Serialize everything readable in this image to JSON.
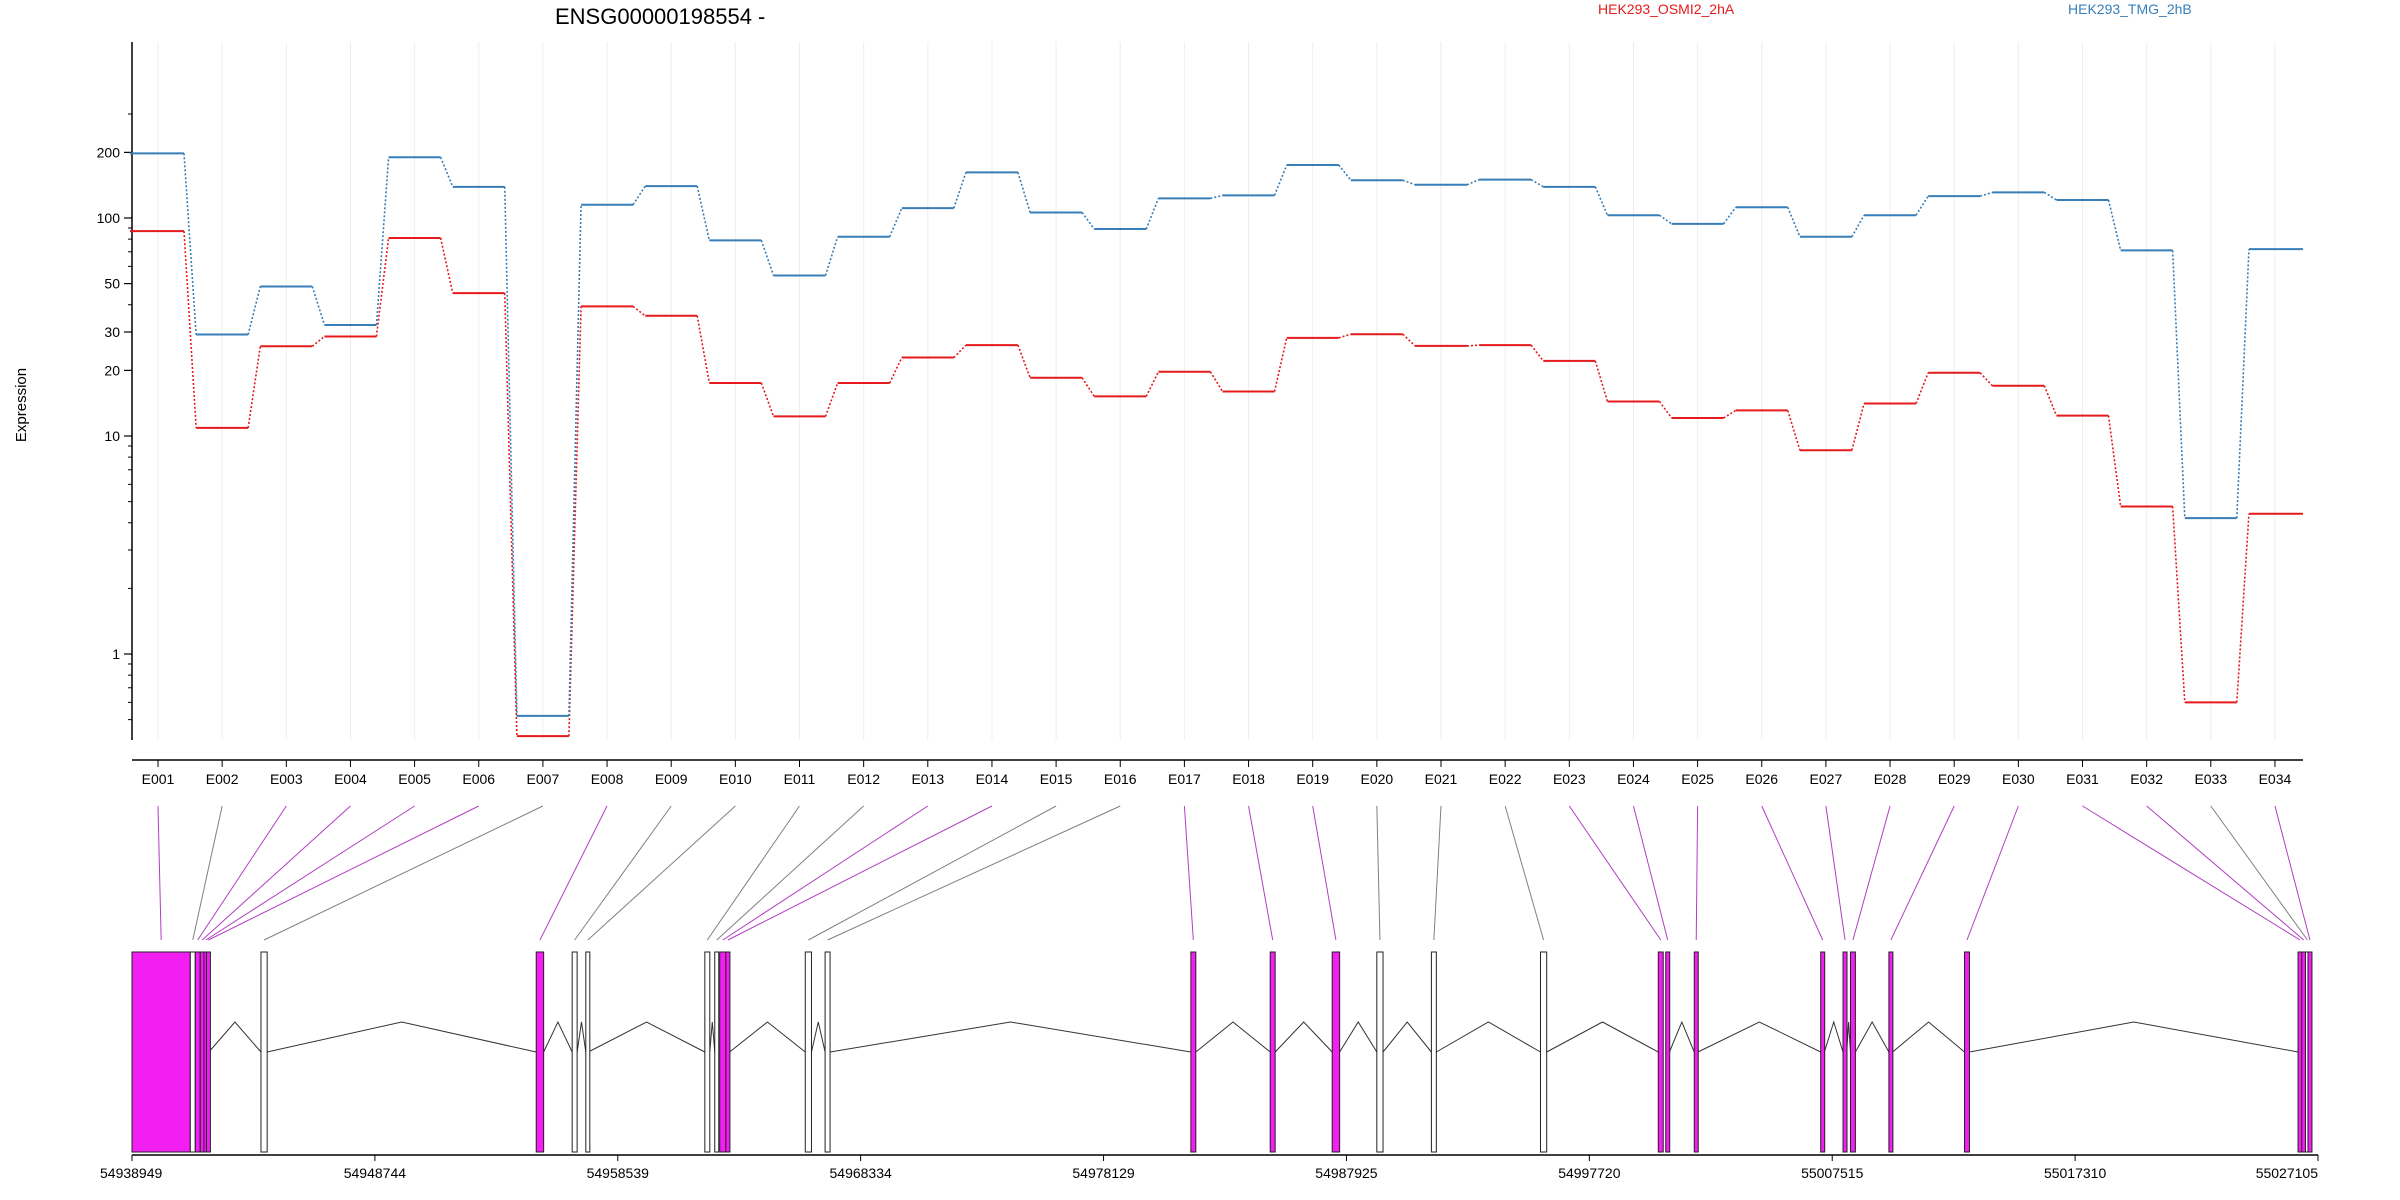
{
  "chart_data": {
    "type": "line",
    "title": "ENSG00000198554 -",
    "ylabel": "Expression",
    "yscale": "log",
    "ylim": [
      0.35,
      350
    ],
    "yticks": [
      1,
      10,
      20,
      30,
      50,
      100,
      200
    ],
    "categories": [
      "E001",
      "E002",
      "E003",
      "E004",
      "E005",
      "E006",
      "E007",
      "E008",
      "E009",
      "E010",
      "E011",
      "E012",
      "E013",
      "E014",
      "E015",
      "E016",
      "E017",
      "E018",
      "E019",
      "E020",
      "E021",
      "E022",
      "E023",
      "E024",
      "E025",
      "E026",
      "E027",
      "E028",
      "E029",
      "E030",
      "E031",
      "E032",
      "E033",
      "E034"
    ],
    "series": [
      {
        "name": "HEK293_OSMI2_2hA",
        "color": "#e41a1c",
        "values": [
          87,
          10.9,
          25.8,
          28.6,
          81,
          45.2,
          0.42,
          39.3,
          35.6,
          17.5,
          12.3,
          17.5,
          22.9,
          26.1,
          18.5,
          15.2,
          19.7,
          16,
          28.2,
          29.3,
          25.9,
          26.1,
          22.1,
          14.4,
          12.1,
          13.1,
          8.6,
          14.1,
          19.5,
          17,
          12.4,
          4.75,
          0.6,
          4.4
        ]
      },
      {
        "name": "HEK293_TMG_2hB",
        "color": "#377eb8",
        "values": [
          198,
          29.2,
          48.5,
          32.3,
          190,
          139,
          0.52,
          115,
          140,
          79,
          54.5,
          82,
          111,
          162,
          106,
          89,
          123,
          127,
          175,
          149,
          142,
          150,
          139,
          103,
          94,
          112,
          82,
          103,
          126,
          131,
          121,
          71,
          4.2,
          72
        ]
      }
    ],
    "genomic_axis": {
      "tick_labels": [
        "54938949",
        "54948744",
        "54958539",
        "54968334",
        "54978129",
        "54987925",
        "54997720",
        "55007515",
        "55017310",
        "55027105"
      ],
      "exons": [
        {
          "id": "E001",
          "start": 54938949,
          "end": 54941300,
          "highlight": true
        },
        {
          "id": "E002",
          "start": 54941300,
          "end": 54941500,
          "highlight": false
        },
        {
          "id": "E003",
          "start": 54941500,
          "end": 54941700,
          "highlight": true
        },
        {
          "id": "E004",
          "start": 54941700,
          "end": 54941850,
          "highlight": true
        },
        {
          "id": "E005",
          "start": 54941850,
          "end": 54941950,
          "highlight": true
        },
        {
          "id": "E006",
          "start": 54941950,
          "end": 54942050,
          "highlight": true
        },
        {
          "id": "E007",
          "start": 54944150,
          "end": 54944400,
          "highlight": false
        },
        {
          "id": "E008",
          "start": 54955250,
          "end": 54955550,
          "highlight": true
        },
        {
          "id": "E009",
          "start": 54956700,
          "end": 54956900,
          "highlight": false
        },
        {
          "id": "E010",
          "start": 54957250,
          "end": 54957350,
          "highlight": false
        },
        {
          "id": "E011",
          "start": 54962050,
          "end": 54962250,
          "highlight": false
        },
        {
          "id": "E012",
          "start": 54962450,
          "end": 54962550,
          "highlight": false
        },
        {
          "id": "E013",
          "start": 54962650,
          "end": 54962900,
          "highlight": true
        },
        {
          "id": "E014",
          "start": 54962900,
          "end": 54963050,
          "highlight": true
        },
        {
          "id": "E015",
          "start": 54966100,
          "end": 54966350,
          "highlight": false
        },
        {
          "id": "E016",
          "start": 54966900,
          "end": 54967100,
          "highlight": false
        },
        {
          "id": "E017",
          "start": 54981650,
          "end": 54981850,
          "highlight": true
        },
        {
          "id": "E018",
          "start": 54984850,
          "end": 54985050,
          "highlight": true
        },
        {
          "id": "E019",
          "start": 54987350,
          "end": 54987650,
          "highlight": true
        },
        {
          "id": "E020",
          "start": 54989150,
          "end": 54989400,
          "highlight": false
        },
        {
          "id": "E021",
          "start": 54991350,
          "end": 54991550,
          "highlight": false
        },
        {
          "id": "E022",
          "start": 54995750,
          "end": 54996000,
          "highlight": false
        },
        {
          "id": "E023",
          "start": 55000500,
          "end": 55000700,
          "highlight": true
        },
        {
          "id": "E024",
          "start": 55000800,
          "end": 55000950,
          "highlight": true
        },
        {
          "id": "E025",
          "start": 55001950,
          "end": 55002100,
          "highlight": true
        },
        {
          "id": "E026",
          "start": 55007050,
          "end": 55007200,
          "highlight": true
        },
        {
          "id": "E027",
          "start": 55007950,
          "end": 55008100,
          "highlight": true
        },
        {
          "id": "E028",
          "start": 55008250,
          "end": 55008450,
          "highlight": true
        },
        {
          "id": "E029",
          "start": 55009800,
          "end": 55009950,
          "highlight": true
        },
        {
          "id": "E030",
          "start": 55012850,
          "end": 55013050,
          "highlight": true
        },
        {
          "id": "E031",
          "start": 55026300,
          "end": 55026450,
          "highlight": true
        },
        {
          "id": "E032",
          "start": 55026450,
          "end": 55026600,
          "highlight": true
        },
        {
          "id": "E033",
          "start": 55026600,
          "end": 55026700,
          "highlight": false
        },
        {
          "id": "E034",
          "start": 55026700,
          "end": 55026850,
          "highlight": true
        }
      ]
    }
  }
}
